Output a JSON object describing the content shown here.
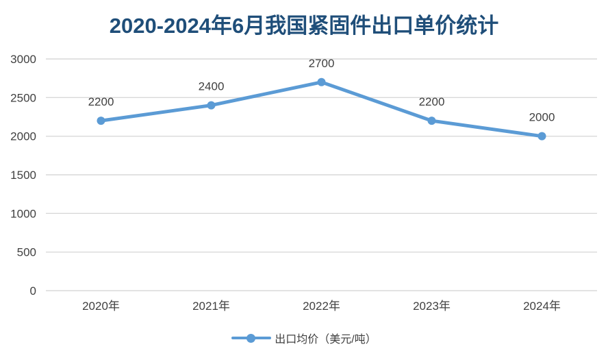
{
  "chart_data": {
    "type": "line",
    "title": "2020-2024年6月我国紧固件出口单价统计",
    "categories": [
      "2020年",
      "2021年",
      "2022年",
      "2023年",
      "2024年"
    ],
    "series": [
      {
        "name": "出口均价（美元/吨）",
        "values": [
          2200,
          2400,
          2700,
          2200,
          2000
        ]
      }
    ],
    "data_labels_shown": true,
    "xlabel": "",
    "ylabel": "",
    "ylim": [
      0,
      3000
    ],
    "ytick_step": 500,
    "grid": true,
    "legend_position": "bottom",
    "colors": {
      "line": "#5B9BD5",
      "title": "#1F4E79",
      "axis_text": "#404040",
      "data_label": "#404040",
      "gridline": "#D9D9D9"
    }
  }
}
